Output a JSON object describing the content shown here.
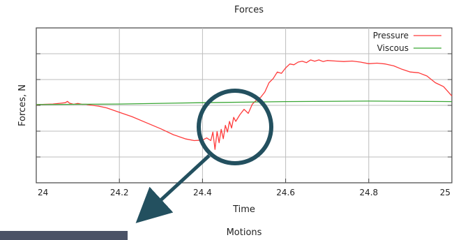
{
  "chart_data": {
    "type": "line",
    "title": "Forces",
    "xlabel": "Time",
    "ylabel": "Forces, N",
    "xlim": [
      24,
      25
    ],
    "xticks": [
      "24",
      "24.2",
      "24.4",
      "24.6",
      "24.8",
      "25"
    ],
    "y_tick_labels_shown": false,
    "grid": true,
    "legend_position": "top-right",
    "series": [
      {
        "name": "Pressure",
        "color": "#ff3b3b",
        "x": [
          24.0,
          24.02,
          24.04,
          24.06,
          24.07,
          24.075,
          24.08,
          24.09,
          24.1,
          24.11,
          24.12,
          24.13,
          24.15,
          24.17,
          24.2,
          24.23,
          24.26,
          24.3,
          24.33,
          24.36,
          24.38,
          24.4,
          24.41,
          24.42,
          24.425,
          24.43,
          24.435,
          24.44,
          24.445,
          24.45,
          24.455,
          24.46,
          24.465,
          24.47,
          24.475,
          24.48,
          24.49,
          24.5,
          24.51,
          24.52,
          24.53,
          24.54,
          24.55,
          24.56,
          24.57,
          24.58,
          24.59,
          24.6,
          24.61,
          24.62,
          24.63,
          24.64,
          24.65,
          24.66,
          24.67,
          24.68,
          24.69,
          24.7,
          24.72,
          24.74,
          24.76,
          24.78,
          24.8,
          24.82,
          24.84,
          24.86,
          24.88,
          24.9,
          24.92,
          24.94,
          24.96,
          24.98,
          25.0
        ],
        "y": [
          0.72,
          0.74,
          0.75,
          0.78,
          0.8,
          0.85,
          0.78,
          0.74,
          0.77,
          0.74,
          0.74,
          0.71,
          0.67,
          0.6,
          0.44,
          0.28,
          0.08,
          -0.18,
          -0.4,
          -0.56,
          -0.62,
          -0.6,
          -0.52,
          -0.62,
          -0.3,
          -0.95,
          -0.28,
          -0.7,
          -0.2,
          -0.55,
          -0.05,
          -0.3,
          0.1,
          -0.15,
          0.25,
          0.1,
          0.35,
          0.55,
          0.4,
          0.75,
          0.9,
          1.0,
          1.2,
          1.55,
          1.7,
          1.95,
          1.9,
          2.1,
          2.25,
          2.22,
          2.32,
          2.35,
          2.3,
          2.4,
          2.35,
          2.4,
          2.34,
          2.38,
          2.36,
          2.34,
          2.36,
          2.32,
          2.26,
          2.28,
          2.25,
          2.18,
          2.05,
          1.95,
          1.92,
          1.8,
          1.55,
          1.4,
          1.05
        ]
      },
      {
        "name": "Viscous",
        "color": "#3aa635",
        "x": [
          24.0,
          24.2,
          24.4,
          24.6,
          24.8,
          25.0
        ],
        "y": [
          0.73,
          0.75,
          0.8,
          0.84,
          0.86,
          0.84
        ]
      }
    ],
    "annotation": {
      "shape": "circle",
      "color": "#23505f",
      "center_data": [
        24.47,
        -0.25
      ],
      "arrow": "down-left"
    }
  },
  "footer": {
    "next_chart_title": "Motions"
  }
}
